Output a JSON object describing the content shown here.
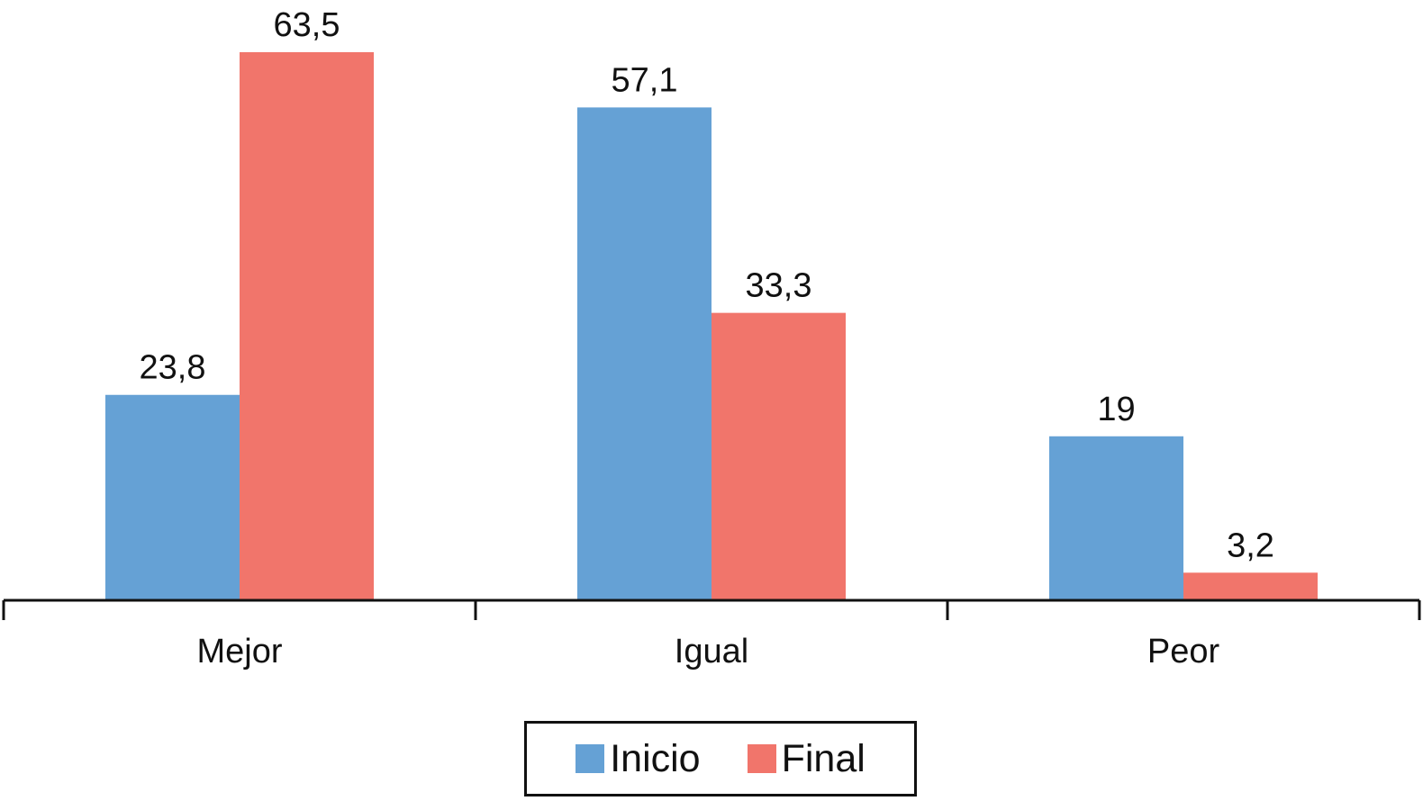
{
  "chart_data": {
    "type": "bar",
    "categories": [
      "Mejor",
      "Igual",
      "Peor"
    ],
    "series": [
      {
        "name": "Inicio",
        "values": [
          23.8,
          57.1,
          19
        ],
        "labels": [
          "23,8",
          "57,1",
          "19"
        ],
        "color": "#65A1D5"
      },
      {
        "name": "Final",
        "values": [
          63.5,
          33.3,
          3.2
        ],
        "labels": [
          "63,5",
          "33,3",
          "3,2"
        ],
        "color": "#F1756B"
      }
    ],
    "ylim": [
      0,
      63.5
    ],
    "grid": false,
    "y_axis_visible": false,
    "legend_position": "bottom-center"
  }
}
